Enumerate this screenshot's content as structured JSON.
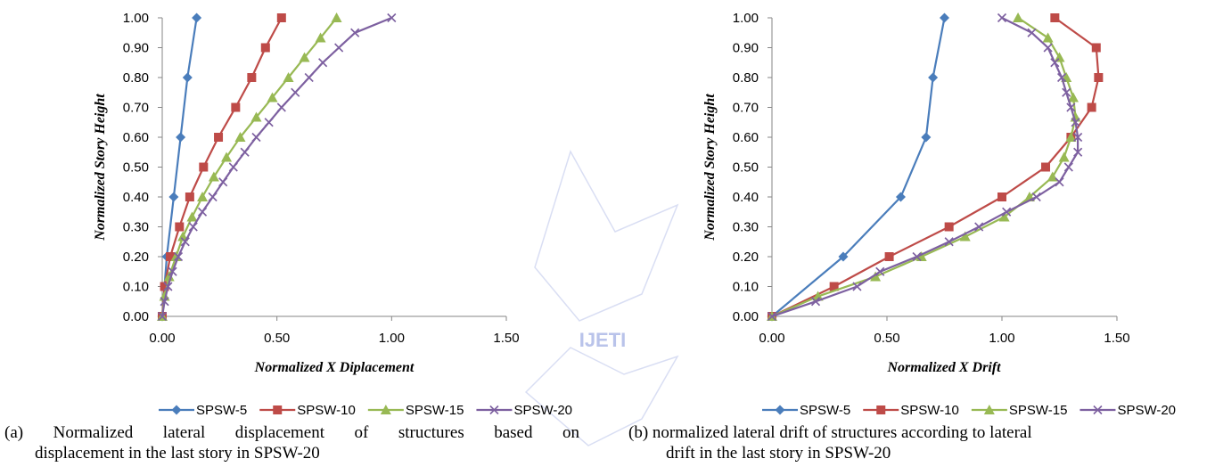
{
  "watermark": {
    "text": "IJETI",
    "color": "#b9c3ea"
  },
  "colors": {
    "axis": "#868686",
    "text": "#000000"
  },
  "chart_data": [
    {
      "type": "line",
      "title": "",
      "xlabel": "Normalized X Diplacement",
      "ylabel": "Normalized Story Height",
      "xlim": [
        0,
        1.5
      ],
      "ylim": [
        0,
        1.0
      ],
      "x_ticks": [
        "0.00",
        "0.50",
        "1.00",
        "1.50"
      ],
      "y_ticks": [
        "0.00",
        "0.10",
        "0.20",
        "0.30",
        "0.40",
        "0.50",
        "0.60",
        "0.70",
        "0.80",
        "0.90",
        "1.00"
      ],
      "grid": false,
      "legend_position": "bottom",
      "series": [
        {
          "name": "SPSW-5",
          "color": "#4a7dbb",
          "marker": "diamond",
          "points": [
            [
              0,
              0
            ],
            [
              0.02,
              0.2
            ],
            [
              0.05,
              0.4
            ],
            [
              0.08,
              0.6
            ],
            [
              0.11,
              0.8
            ],
            [
              0.15,
              1.0
            ]
          ]
        },
        {
          "name": "SPSW-10",
          "color": "#be4b48",
          "marker": "square",
          "points": [
            [
              0,
              0
            ],
            [
              0.01,
              0.1
            ],
            [
              0.035,
              0.2
            ],
            [
              0.075,
              0.3
            ],
            [
              0.12,
              0.4
            ],
            [
              0.18,
              0.5
            ],
            [
              0.245,
              0.6
            ],
            [
              0.32,
              0.7
            ],
            [
              0.39,
              0.8
            ],
            [
              0.45,
              0.9
            ],
            [
              0.52,
              1.0
            ]
          ]
        },
        {
          "name": "SPSW-15",
          "color": "#98b954",
          "marker": "triangle",
          "points": [
            [
              0,
              0
            ],
            [
              0.01,
              0.067
            ],
            [
              0.03,
              0.133
            ],
            [
              0.06,
              0.2
            ],
            [
              0.09,
              0.267
            ],
            [
              0.13,
              0.333
            ],
            [
              0.175,
              0.4
            ],
            [
              0.225,
              0.467
            ],
            [
              0.28,
              0.533
            ],
            [
              0.34,
              0.6
            ],
            [
              0.41,
              0.667
            ],
            [
              0.48,
              0.733
            ],
            [
              0.55,
              0.8
            ],
            [
              0.62,
              0.867
            ],
            [
              0.69,
              0.933
            ],
            [
              0.76,
              1.0
            ]
          ]
        },
        {
          "name": "SPSW-20",
          "color": "#7d60a0",
          "marker": "x",
          "points": [
            [
              0,
              0
            ],
            [
              0.01,
              0.05
            ],
            [
              0.025,
              0.1
            ],
            [
              0.045,
              0.15
            ],
            [
              0.07,
              0.2
            ],
            [
              0.1,
              0.25
            ],
            [
              0.135,
              0.3
            ],
            [
              0.175,
              0.35
            ],
            [
              0.22,
              0.4
            ],
            [
              0.265,
              0.45
            ],
            [
              0.31,
              0.5
            ],
            [
              0.36,
              0.55
            ],
            [
              0.41,
              0.6
            ],
            [
              0.465,
              0.65
            ],
            [
              0.52,
              0.7
            ],
            [
              0.58,
              0.75
            ],
            [
              0.64,
              0.8
            ],
            [
              0.7,
              0.85
            ],
            [
              0.77,
              0.9
            ],
            [
              0.84,
              0.95
            ],
            [
              1.0,
              1.0
            ]
          ]
        }
      ]
    },
    {
      "type": "line",
      "title": "",
      "xlabel": "Normalized X Drift",
      "ylabel": "Normalized Story Height",
      "xlim": [
        0,
        1.5
      ],
      "ylim": [
        0,
        1.0
      ],
      "x_ticks": [
        "0.00",
        "0.50",
        "1.00",
        "1.50"
      ],
      "y_ticks": [
        "0.00",
        "0.10",
        "0.20",
        "0.30",
        "0.40",
        "0.50",
        "0.60",
        "0.70",
        "0.80",
        "0.90",
        "1.00"
      ],
      "grid": false,
      "legend_position": "bottom",
      "series": [
        {
          "name": "SPSW-5",
          "color": "#4a7dbb",
          "marker": "diamond",
          "points": [
            [
              0,
              0
            ],
            [
              0.31,
              0.2
            ],
            [
              0.56,
              0.4
            ],
            [
              0.67,
              0.6
            ],
            [
              0.7,
              0.8
            ],
            [
              0.75,
              1.0
            ]
          ]
        },
        {
          "name": "SPSW-10",
          "color": "#be4b48",
          "marker": "square",
          "points": [
            [
              0,
              0
            ],
            [
              0.27,
              0.1
            ],
            [
              0.51,
              0.2
            ],
            [
              0.77,
              0.3
            ],
            [
              1.0,
              0.4
            ],
            [
              1.19,
              0.5
            ],
            [
              1.3,
              0.6
            ],
            [
              1.39,
              0.7
            ],
            [
              1.42,
              0.8
            ],
            [
              1.41,
              0.9
            ],
            [
              1.23,
              1.0
            ]
          ]
        },
        {
          "name": "SPSW-15",
          "color": "#98b954",
          "marker": "triangle",
          "points": [
            [
              0,
              0
            ],
            [
              0.2,
              0.067
            ],
            [
              0.45,
              0.133
            ],
            [
              0.65,
              0.2
            ],
            [
              0.84,
              0.267
            ],
            [
              1.01,
              0.333
            ],
            [
              1.12,
              0.4
            ],
            [
              1.22,
              0.467
            ],
            [
              1.27,
              0.533
            ],
            [
              1.3,
              0.6
            ],
            [
              1.32,
              0.667
            ],
            [
              1.31,
              0.733
            ],
            [
              1.28,
              0.8
            ],
            [
              1.25,
              0.867
            ],
            [
              1.2,
              0.933
            ],
            [
              1.07,
              1.0
            ]
          ]
        },
        {
          "name": "SPSW-20",
          "color": "#7d60a0",
          "marker": "x",
          "points": [
            [
              0,
              0
            ],
            [
              0.19,
              0.05
            ],
            [
              0.37,
              0.1
            ],
            [
              0.47,
              0.15
            ],
            [
              0.63,
              0.2
            ],
            [
              0.77,
              0.25
            ],
            [
              0.9,
              0.3
            ],
            [
              1.02,
              0.35
            ],
            [
              1.15,
              0.4
            ],
            [
              1.25,
              0.45
            ],
            [
              1.29,
              0.5
            ],
            [
              1.33,
              0.55
            ],
            [
              1.33,
              0.6
            ],
            [
              1.32,
              0.65
            ],
            [
              1.3,
              0.7
            ],
            [
              1.28,
              0.75
            ],
            [
              1.26,
              0.8
            ],
            [
              1.23,
              0.85
            ],
            [
              1.2,
              0.9
            ],
            [
              1.13,
              0.95
            ],
            [
              1.0,
              1.0
            ]
          ]
        }
      ]
    }
  ],
  "captions": {
    "a": {
      "line1": "(a) Normalized lateral displacement of structures based on",
      "line2": "displacement in the last story in SPSW-20"
    },
    "b": {
      "line1": "(b) normalized lateral drift of structures according to lateral",
      "line2": "drift in the last story in SPSW-20"
    }
  }
}
